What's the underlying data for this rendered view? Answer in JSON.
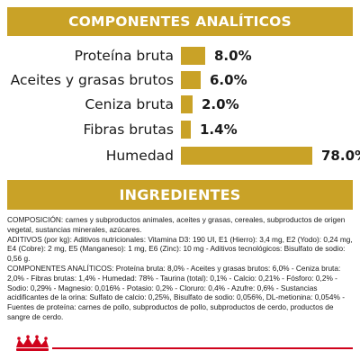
{
  "analytics": {
    "title": "COMPONENTES ANALÍTICOS",
    "items": [
      {
        "label": "Proteína bruta",
        "value": "8.0%",
        "percent": 8.0
      },
      {
        "label": "Aceites y grasas brutos",
        "value": "6.0%",
        "percent": 6.0
      },
      {
        "label": "Ceniza bruta",
        "value": "2.0%",
        "percent": 2.0
      },
      {
        "label": "Fibras brutas",
        "value": "1.4%",
        "percent": 1.4
      },
      {
        "label": "Humedad",
        "value": "78.0%",
        "percent": 78.0
      }
    ]
  },
  "ingredients": {
    "title": "INGREDIENTES",
    "paragraphs": [
      "COMPOSICIÓN: carnes y subproductos animales, aceites y grasas, cereales, subproductos de origen vegetal, sustancias minerales, azúcares.",
      "ADITIVOS (por kg): Aditivos nutricionales: Vitamina D3: 190 UI, E1 (Hierro): 3,4 mg, E2 (Yodo): 0,24 mg, E4 (Cobre): 2 mg, E5 (Manganeso): 1 mg, E6 (Zinc): 10 mg - Aditivos tecnológicos: Bisulfato de sodio: 0,56 g.",
      "COMPONENTES ANALÍTICOS: Proteína bruta: 8,0% - Aceites y grasas brutos: 6,0% - Ceniza bruta: 2,0% - Fibras brutas: 1,4% - Humedad: 78% - Taurina (total): 0,1% - Calcio: 0,21% - Fósforo: 0,2% - Sodio: 0,29% - Magnesio: 0,016% - Potasio: 0,2% - Cloruro: 0,4% - Azufre: 0,6% - Sustancias acidificantes de la orina: Sulfato de calcio: 0,25%, Bisulfato de sodio: 0,056%, DL-metionina: 0,054% - Fuentes de proteína: carnes de pollo, subproductos de pollo, subproductos de cerdo, productos de sangre de cerdo."
    ]
  },
  "brand": {
    "logo": "royal-canin-crown-logo",
    "accent_color": "#c9a227",
    "line_color": "#d0021b"
  }
}
